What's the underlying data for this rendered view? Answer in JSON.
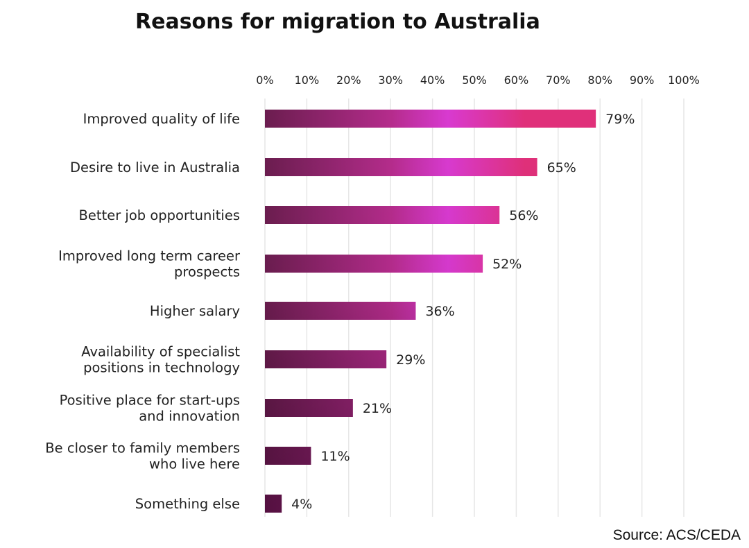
{
  "chart_data": {
    "type": "bar",
    "orientation": "horizontal",
    "title": "Reasons for migration to Australia",
    "source": "Source: ACS/CEDA",
    "categories": [
      "Improved quality of life",
      "Desire to live in Australia",
      "Better job opportunities",
      "Improved long term career prospects",
      "Higher salary",
      "Availability of specialist positions in technology",
      "Positive place for start-ups and innovation",
      "Be closer to family members who live here",
      "Something else"
    ],
    "category_lines": [
      [
        "Improved quality of life"
      ],
      [
        "Desire to live in Australia"
      ],
      [
        "Better job opportunities"
      ],
      [
        "Improved long term career",
        "prospects"
      ],
      [
        "Higher salary"
      ],
      [
        "Availability of specialist",
        "positions in technology"
      ],
      [
        "Positive place for start-ups",
        "and innovation"
      ],
      [
        "Be closer to family members",
        "who live here"
      ],
      [
        "Something else"
      ]
    ],
    "values": [
      79,
      65,
      56,
      52,
      36,
      29,
      21,
      11,
      4
    ],
    "value_labels": [
      "79%",
      "65%",
      "56%",
      "52%",
      "36%",
      "29%",
      "21%",
      "11%",
      "4%"
    ],
    "xlim": [
      0,
      100
    ],
    "x_ticks": [
      0,
      10,
      20,
      30,
      40,
      50,
      60,
      70,
      80,
      90,
      100
    ],
    "x_tick_labels": [
      "0%",
      "10%",
      "20%",
      "30%",
      "40%",
      "50%",
      "60%",
      "70%",
      "80%",
      "90%",
      "100%"
    ],
    "grid": "vertical",
    "axis_position": "top",
    "legend": "none",
    "colors": {
      "dark": "#6b1d4f",
      "mid": "#b52c8c",
      "bright": "#d83ad0",
      "pink": "#e0307a",
      "grid": "#e6e6e6"
    }
  }
}
